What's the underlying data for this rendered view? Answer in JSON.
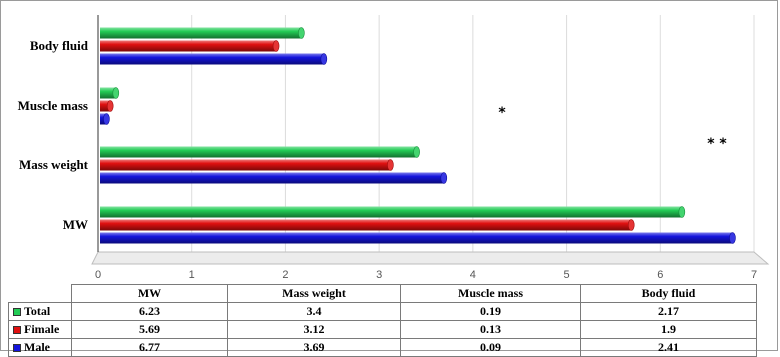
{
  "chart_data": {
    "type": "bar",
    "orientation": "horizontal",
    "style": "3d-cylinder",
    "categories": [
      "MW",
      "Mass weight",
      "Muscle mass",
      "Body fluid"
    ],
    "series": [
      {
        "name": "Total",
        "color": "#22cc55",
        "values": [
          6.23,
          3.4,
          0.19,
          2.17
        ]
      },
      {
        "name": "Fimale",
        "color": "#e01010",
        "values": [
          5.69,
          3.12,
          0.13,
          1.9
        ]
      },
      {
        "name": "Male",
        "color": "#1414dd",
        "values": [
          6.77,
          3.69,
          0.09,
          2.41
        ]
      }
    ],
    "table_values": {
      "Total": [
        "6.23",
        "3.4",
        "0.19",
        "2.17"
      ],
      "Fimale": [
        "5.69",
        "3.12",
        "0.13",
        "1.9"
      ],
      "Male": [
        "6.77",
        "3.69",
        "0.09",
        "2.41"
      ]
    },
    "xlim": [
      0,
      7
    ],
    "xticks": [
      "0",
      "1",
      "2",
      "3",
      "4",
      "5",
      "6",
      "7"
    ],
    "grid": true,
    "legend": "data-table-below",
    "annotations": [
      "*",
      "* *"
    ]
  }
}
